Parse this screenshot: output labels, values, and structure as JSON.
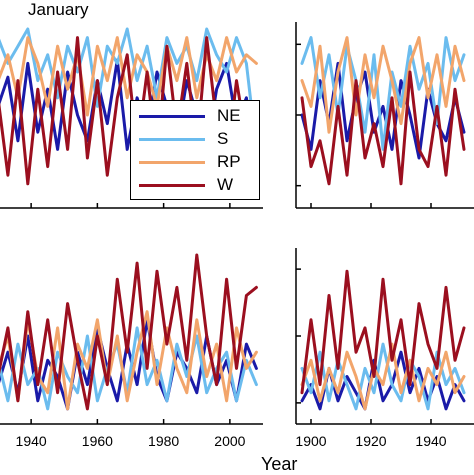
{
  "figure": {
    "title": "January",
    "xlabel": "Year"
  },
  "legend": [
    {
      "name": "NE",
      "color": "#1a1aa8"
    },
    {
      "name": "S",
      "color": "#6bbcee"
    },
    {
      "name": "RP",
      "color": "#f2a56b"
    },
    {
      "name": "W",
      "color": "#9b0f1f"
    }
  ],
  "chart_data": [
    {
      "type": "line",
      "title": "January",
      "xlabel": "",
      "ylabel": "",
      "xlim": [
        1930,
        2010
      ],
      "ylim": [
        0,
        1
      ],
      "x_ticks": [
        1940,
        1960,
        1980,
        2000
      ],
      "x_tick_labels": [],
      "series": [
        {
          "name": "NE",
          "x": [
            1930,
            1933,
            1936,
            1939,
            1942,
            1945,
            1948,
            1951,
            1954,
            1957,
            1960,
            1963,
            1966,
            1969,
            1972,
            1975,
            1978,
            1981,
            1984,
            1987,
            1990,
            1993,
            1996,
            1999,
            2002,
            2005,
            2008
          ],
          "y": [
            0.55,
            0.72,
            0.35,
            0.8,
            0.4,
            0.65,
            0.3,
            0.75,
            0.5,
            0.35,
            0.7,
            0.45,
            0.82,
            0.3,
            0.6,
            0.4,
            0.75,
            0.55,
            0.35,
            0.7,
            0.5,
            0.3,
            0.65,
            0.8,
            0.45,
            0.6,
            0.2
          ]
        },
        {
          "name": "S",
          "x": [
            1930,
            1933,
            1936,
            1939,
            1942,
            1945,
            1948,
            1951,
            1954,
            1957,
            1960,
            1963,
            1966,
            1969,
            1972,
            1975,
            1978,
            1981,
            1984,
            1987,
            1990,
            1993,
            1996,
            1999,
            2002,
            2005,
            2008
          ],
          "y": [
            0.95,
            0.8,
            0.9,
            1.0,
            0.7,
            0.85,
            0.6,
            0.9,
            0.75,
            0.95,
            0.55,
            0.9,
            0.8,
            1.0,
            0.7,
            0.9,
            0.6,
            0.95,
            0.8,
            0.9,
            0.7,
            1.0,
            0.85,
            0.75,
            0.95,
            0.8,
            0.3
          ]
        },
        {
          "name": "RP",
          "x": [
            1930,
            1933,
            1936,
            1939,
            1942,
            1945,
            1948,
            1951,
            1954,
            1957,
            1960,
            1963,
            1966,
            1969,
            1972,
            1975,
            1978,
            1981,
            1984,
            1987,
            1990,
            1993,
            1996,
            1999,
            2002,
            2005,
            2008
          ],
          "y": [
            0.7,
            0.85,
            0.6,
            0.95,
            0.8,
            0.55,
            0.9,
            0.65,
            0.85,
            0.5,
            0.9,
            0.7,
            0.95,
            0.6,
            0.85,
            0.75,
            0.55,
            0.9,
            0.7,
            0.95,
            0.6,
            0.85,
            0.7,
            0.95,
            0.75,
            0.85,
            0.8
          ]
        },
        {
          "name": "W",
          "x": [
            1930,
            1933,
            1936,
            1939,
            1942,
            1945,
            1948,
            1951,
            1954,
            1957,
            1960,
            1963,
            1966,
            1969,
            1972,
            1975,
            1978,
            1981,
            1984,
            1987,
            1990,
            1993,
            1996,
            1999,
            2002,
            2005,
            2008
          ],
          "y": [
            0.6,
            0.15,
            0.7,
            0.1,
            0.65,
            0.2,
            0.75,
            0.3,
            0.95,
            0.25,
            0.7,
            0.15,
            0.6,
            0.85,
            0.3,
            0.75,
            0.25,
            0.9,
            0.4,
            0.8,
            0.3,
            0.95,
            0.45,
            0.2,
            0.7,
            0.35,
            0.15
          ]
        }
      ]
    },
    {
      "type": "line",
      "title": "",
      "xlabel": "",
      "ylabel": "",
      "xlim": [
        1895,
        1955
      ],
      "ylim": [
        0,
        1
      ],
      "x_ticks": [
        1900,
        1920,
        1940
      ],
      "x_tick_labels": [],
      "series": [
        {
          "name": "NE",
          "x": [
            1897,
            1900,
            1903,
            1906,
            1909,
            1912,
            1915,
            1918,
            1921,
            1924,
            1927,
            1930,
            1933,
            1936,
            1939,
            1942,
            1945,
            1948,
            1951
          ],
          "y": [
            0.5,
            0.3,
            0.7,
            0.45,
            0.8,
            0.35,
            0.6,
            0.75,
            0.4,
            0.55,
            0.3,
            0.7,
            0.5,
            0.25,
            0.65,
            0.45,
            0.35,
            0.6,
            0.4
          ]
        },
        {
          "name": "S",
          "x": [
            1897,
            1900,
            1903,
            1906,
            1909,
            1912,
            1915,
            1918,
            1921,
            1924,
            1927,
            1930,
            1933,
            1936,
            1939,
            1942,
            1945,
            1948,
            1951
          ],
          "y": [
            0.8,
            0.95,
            0.6,
            0.85,
            0.5,
            0.9,
            0.7,
            0.4,
            0.85,
            0.3,
            0.75,
            0.55,
            0.9,
            0.65,
            0.8,
            0.45,
            0.95,
            0.7,
            0.85
          ]
        },
        {
          "name": "RP",
          "x": [
            1897,
            1900,
            1903,
            1906,
            1909,
            1912,
            1915,
            1918,
            1921,
            1924,
            1927,
            1930,
            1933,
            1936,
            1939,
            1942,
            1945,
            1948,
            1951
          ],
          "y": [
            0.7,
            0.55,
            0.9,
            0.4,
            0.75,
            0.95,
            0.5,
            0.85,
            0.6,
            0.9,
            0.7,
            0.45,
            0.8,
            0.95,
            0.6,
            0.85,
            0.55,
            0.9,
            0.7
          ]
        },
        {
          "name": "W",
          "x": [
            1897,
            1900,
            1903,
            1906,
            1909,
            1912,
            1915,
            1918,
            1921,
            1924,
            1927,
            1930,
            1933,
            1936,
            1939,
            1942,
            1945,
            1948,
            1951
          ],
          "y": [
            0.6,
            0.2,
            0.35,
            0.1,
            0.55,
            0.15,
            0.7,
            0.25,
            0.45,
            0.2,
            0.6,
            0.1,
            0.75,
            0.3,
            0.2,
            0.55,
            0.15,
            0.65,
            0.3
          ]
        }
      ]
    },
    {
      "type": "line",
      "title": "",
      "xlabel": "Year",
      "ylabel": "",
      "xlim": [
        1930,
        2010
      ],
      "ylim": [
        0,
        1
      ],
      "x_ticks": [
        1940,
        1960,
        1980,
        2000
      ],
      "x_tick_labels": [
        "1940",
        "1960",
        "1980",
        "2000"
      ],
      "series": [
        {
          "name": "NE",
          "x": [
            1930,
            1933,
            1936,
            1939,
            1942,
            1945,
            1948,
            1951,
            1954,
            1957,
            1960,
            1963,
            1966,
            1969,
            1972,
            1975,
            1978,
            1981,
            1984,
            1987,
            1990,
            1993,
            1996,
            1999,
            2002,
            2005,
            2008
          ],
          "y": [
            0.2,
            0.4,
            0.15,
            0.5,
            0.1,
            0.35,
            0.25,
            0.05,
            0.4,
            0.2,
            0.55,
            0.3,
            0.1,
            0.45,
            0.2,
            0.6,
            0.25,
            0.1,
            0.4,
            0.3,
            0.15,
            0.5,
            0.2,
            0.35,
            0.1,
            0.45,
            0.3
          ]
        },
        {
          "name": "S",
          "x": [
            1930,
            1933,
            1936,
            1939,
            1942,
            1945,
            1948,
            1951,
            1954,
            1957,
            1960,
            1963,
            1966,
            1969,
            1972,
            1975,
            1978,
            1981,
            1984,
            1987,
            1990,
            1993,
            1996,
            1999,
            2002,
            2005,
            2008
          ],
          "y": [
            0.35,
            0.1,
            0.45,
            0.2,
            0.3,
            0.05,
            0.4,
            0.25,
            0.15,
            0.5,
            0.1,
            0.3,
            0.45,
            0.15,
            0.55,
            0.2,
            0.35,
            0.1,
            0.45,
            0.25,
            0.5,
            0.15,
            0.3,
            0.4,
            0.1,
            0.35,
            0.2
          ]
        },
        {
          "name": "RP",
          "x": [
            1930,
            1933,
            1936,
            1939,
            1942,
            1945,
            1948,
            1951,
            1954,
            1957,
            1960,
            1963,
            1966,
            1969,
            1972,
            1975,
            1978,
            1981,
            1984,
            1987,
            1990,
            1993,
            1996,
            1999,
            2002,
            2005,
            2008
          ],
          "y": [
            0.3,
            0.5,
            0.1,
            0.6,
            0.25,
            0.15,
            0.55,
            0.05,
            0.45,
            0.3,
            0.6,
            0.2,
            0.5,
            0.1,
            0.4,
            0.65,
            0.2,
            0.55,
            0.3,
            0.15,
            0.6,
            0.25,
            0.45,
            0.1,
            0.55,
            0.3,
            0.4
          ]
        },
        {
          "name": "W",
          "x": [
            1930,
            1933,
            1936,
            1939,
            1942,
            1945,
            1948,
            1951,
            1954,
            1957,
            1960,
            1963,
            1966,
            1969,
            1972,
            1975,
            1978,
            1981,
            1984,
            1987,
            1990,
            1993,
            1996,
            1999,
            2002,
            2005,
            2008
          ],
          "y": [
            0.25,
            0.55,
            0.1,
            0.65,
            0.2,
            0.6,
            0.15,
            0.7,
            0.35,
            0.05,
            0.5,
            0.2,
            0.85,
            0.4,
            0.95,
            0.3,
            0.9,
            0.45,
            0.8,
            0.35,
            1.0,
            0.5,
            0.2,
            0.85,
            0.3,
            0.75,
            0.8
          ]
        }
      ]
    },
    {
      "type": "line",
      "title": "",
      "xlabel": "",
      "ylabel": "",
      "xlim": [
        1895,
        1955
      ],
      "ylim": [
        0,
        1
      ],
      "x_ticks": [
        1900,
        1920,
        1940
      ],
      "x_tick_labels": [
        "1900",
        "1920",
        "1940"
      ],
      "series": [
        {
          "name": "NE",
          "x": [
            1897,
            1900,
            1903,
            1906,
            1909,
            1912,
            1915,
            1918,
            1921,
            1924,
            1927,
            1930,
            1933,
            1936,
            1939,
            1942,
            1945,
            1948,
            1951
          ],
          "y": [
            0.1,
            0.2,
            0.05,
            0.3,
            0.1,
            0.25,
            0.15,
            0.05,
            0.35,
            0.1,
            0.2,
            0.4,
            0.15,
            0.3,
            0.1,
            0.25,
            0.05,
            0.2,
            0.1
          ]
        },
        {
          "name": "S",
          "x": [
            1897,
            1900,
            1903,
            1906,
            1909,
            1912,
            1915,
            1918,
            1921,
            1924,
            1927,
            1930,
            1933,
            1936,
            1939,
            1942,
            1945,
            1948,
            1951
          ],
          "y": [
            0.3,
            0.15,
            0.4,
            0.1,
            0.35,
            0.2,
            0.05,
            0.3,
            0.15,
            0.45,
            0.2,
            0.1,
            0.35,
            0.25,
            0.05,
            0.4,
            0.2,
            0.3,
            0.15
          ]
        },
        {
          "name": "RP",
          "x": [
            1897,
            1900,
            1903,
            1906,
            1909,
            1912,
            1915,
            1918,
            1921,
            1924,
            1927,
            1930,
            1933,
            1936,
            1939,
            1942,
            1945,
            1948,
            1951
          ],
          "y": [
            0.2,
            0.35,
            0.1,
            0.3,
            0.15,
            0.4,
            0.25,
            0.05,
            0.3,
            0.2,
            0.45,
            0.15,
            0.35,
            0.1,
            0.3,
            0.2,
            0.4,
            0.15,
            0.25
          ]
        },
        {
          "name": "W",
          "x": [
            1897,
            1900,
            1903,
            1906,
            1909,
            1912,
            1915,
            1918,
            1921,
            1924,
            1927,
            1930,
            1933,
            1936,
            1939,
            1942,
            1945,
            1948,
            1951
          ],
          "y": [
            0.15,
            0.6,
            0.2,
            0.75,
            0.3,
            0.9,
            0.4,
            0.55,
            0.25,
            0.85,
            0.35,
            0.6,
            0.2,
            0.7,
            0.45,
            0.3,
            0.8,
            0.35,
            0.55
          ]
        }
      ]
    }
  ]
}
